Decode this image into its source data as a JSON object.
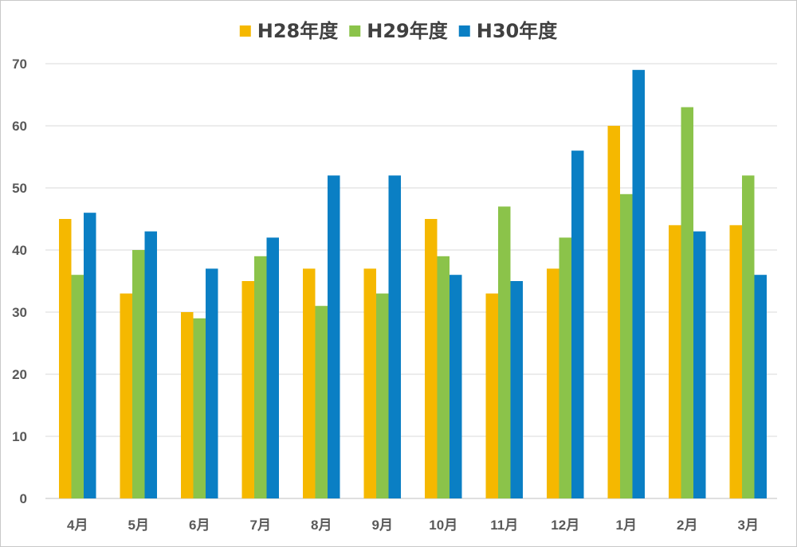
{
  "chart_data": {
    "type": "bar",
    "title": "",
    "xlabel": "",
    "ylabel": "",
    "ylim": [
      0,
      70
    ],
    "yticks": [
      "0",
      "10",
      "20",
      "30",
      "40",
      "50",
      "60",
      "70"
    ],
    "grid": true,
    "legend_position": "top-center",
    "categories": [
      "4月",
      "5月",
      "6月",
      "7月",
      "8月",
      "9月",
      "10月",
      "11月",
      "12月",
      "1月",
      "2月",
      "3月"
    ],
    "series": [
      {
        "name": "H28年度",
        "color": "#f5b800",
        "values": [
          45,
          33,
          30,
          35,
          37,
          37,
          45,
          33,
          37,
          60,
          44,
          44
        ]
      },
      {
        "name": "H29年度",
        "color": "#8bc34a",
        "values": [
          36,
          40,
          29,
          39,
          31,
          33,
          39,
          47,
          42,
          49,
          63,
          52
        ]
      },
      {
        "name": "H30年度",
        "color": "#0a7fc4",
        "values": [
          46,
          43,
          37,
          42,
          52,
          52,
          36,
          35,
          56,
          69,
          43,
          36
        ]
      }
    ]
  }
}
